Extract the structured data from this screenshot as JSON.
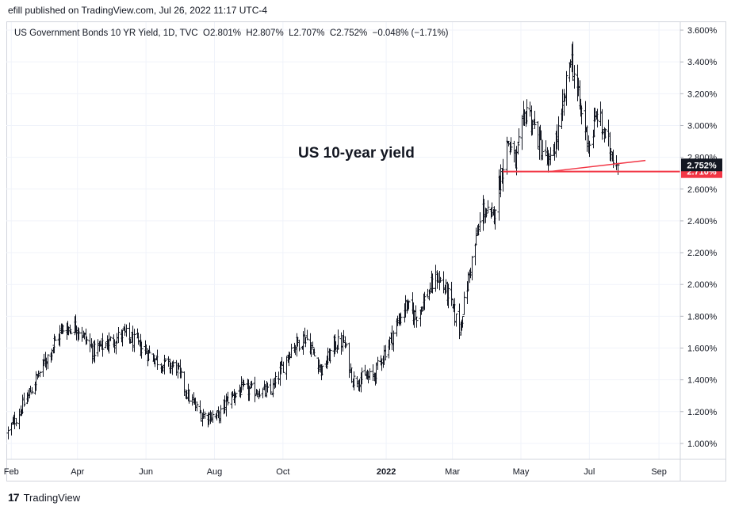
{
  "publisher": "efill published on TradingView.com, Jul 26, 2022 11:17 UTC-4",
  "footer": {
    "logo_glyph": "17",
    "brand": "TradingView"
  },
  "legend": {
    "symbol": "US Government Bonds 10 YR Yield, 1D, TVC",
    "o_label": "O",
    "o": "2.801%",
    "h_label": "H",
    "h": "2.807%",
    "l_label": "L",
    "l": "2.707%",
    "c_label": "C",
    "c": "2.752%",
    "change": "−0.048% (−1.71%)"
  },
  "annotation": "US 10-year yield",
  "colors": {
    "bars": "#131722",
    "support": "#f23645",
    "grid": "#f0f3fa",
    "axis_text": "#131722",
    "last_price_bg": "#131722"
  },
  "chart_data": {
    "type": "ohlc",
    "x_range": [
      "2021-01-29",
      "2022-09-20"
    ],
    "y_range": [
      0.9,
      3.65
    ],
    "y_ticks": [
      "1.000%",
      "1.200%",
      "1.400%",
      "1.600%",
      "1.800%",
      "2.000%",
      "2.200%",
      "2.400%",
      "2.600%",
      "2.800%",
      "3.000%",
      "3.200%",
      "3.400%",
      "3.600%"
    ],
    "x_ticks": [
      {
        "date": "2021-02-01",
        "label": "Feb"
      },
      {
        "date": "2021-04-01",
        "label": "Apr"
      },
      {
        "date": "2021-06-01",
        "label": "Jun"
      },
      {
        "date": "2021-08-01",
        "label": "Aug"
      },
      {
        "date": "2021-10-01",
        "label": "Oct"
      },
      {
        "date": "2022-01-01",
        "label": "2022"
      },
      {
        "date": "2022-03-01",
        "label": "Mar"
      },
      {
        "date": "2022-05-01",
        "label": "May"
      },
      {
        "date": "2022-07-01",
        "label": "Jul"
      },
      {
        "date": "2022-09-01",
        "label": "Sep"
      }
    ],
    "price_anchors": [
      [
        "2021-01-29",
        1.07
      ],
      [
        "2021-02-16",
        1.3
      ],
      [
        "2021-03-05",
        1.55
      ],
      [
        "2021-03-18",
        1.72
      ],
      [
        "2021-03-31",
        1.74
      ],
      [
        "2021-04-15",
        1.58
      ],
      [
        "2021-05-12",
        1.69
      ],
      [
        "2021-05-28",
        1.6
      ],
      [
        "2021-06-15",
        1.5
      ],
      [
        "2021-06-28",
        1.48
      ],
      [
        "2021-07-08",
        1.3
      ],
      [
        "2021-07-20",
        1.18
      ],
      [
        "2021-08-04",
        1.17
      ],
      [
        "2021-08-13",
        1.28
      ],
      [
        "2021-08-25",
        1.34
      ],
      [
        "2021-09-20",
        1.32
      ],
      [
        "2021-10-08",
        1.6
      ],
      [
        "2021-10-21",
        1.67
      ],
      [
        "2021-11-05",
        1.45
      ],
      [
        "2021-11-15",
        1.62
      ],
      [
        "2021-11-24",
        1.64
      ],
      [
        "2021-12-02",
        1.4
      ],
      [
        "2021-12-20",
        1.42
      ],
      [
        "2022-01-03",
        1.63
      ],
      [
        "2022-01-18",
        1.87
      ],
      [
        "2022-01-27",
        1.8
      ],
      [
        "2022-02-15",
        2.05
      ],
      [
        "2022-02-24",
        1.95
      ],
      [
        "2022-03-07",
        1.72
      ],
      [
        "2022-03-18",
        2.15
      ],
      [
        "2022-03-28",
        2.48
      ],
      [
        "2022-04-05",
        2.4
      ],
      [
        "2022-04-19",
        2.91
      ],
      [
        "2022-04-26",
        2.76
      ],
      [
        "2022-05-06",
        3.12
      ],
      [
        "2022-05-18",
        2.88
      ],
      [
        "2022-05-26",
        2.74
      ],
      [
        "2022-06-06",
        3.04
      ],
      [
        "2022-06-14",
        3.45
      ],
      [
        "2022-06-23",
        3.09
      ],
      [
        "2022-07-01",
        2.88
      ],
      [
        "2022-07-08",
        3.08
      ],
      [
        "2022-07-15",
        2.92
      ],
      [
        "2022-07-26",
        2.752
      ]
    ],
    "last_close": 2.752,
    "last_close_label": "2.752%",
    "support_level": 2.71,
    "support_label": "2.710%",
    "support_line": {
      "from": [
        "2022-04-15",
        2.71
      ],
      "to": [
        "2022-09-20",
        2.71
      ]
    },
    "trend_line": {
      "from": [
        "2022-05-26",
        2.71
      ],
      "to": [
        "2022-08-20",
        2.78
      ]
    }
  }
}
